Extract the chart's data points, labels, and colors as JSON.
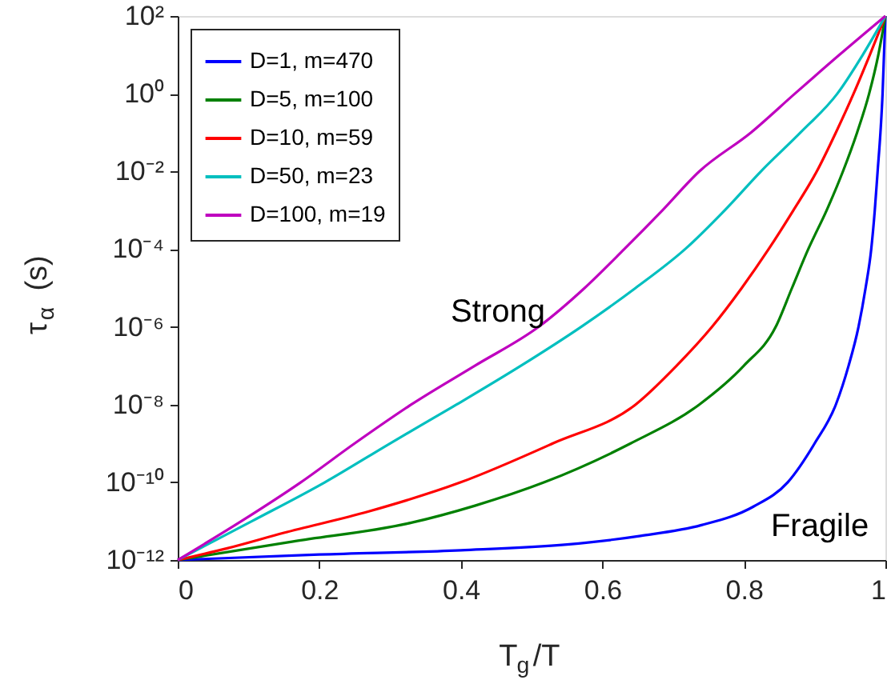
{
  "chart_data": {
    "type": "line",
    "xlabel": "T$_{g}$/T",
    "ylabel": "τ$_{α}$ (s)",
    "log": "y",
    "xlim": [
      0,
      1
    ],
    "xticks": [
      0,
      0.2,
      0.4,
      0.6,
      0.8,
      1
    ],
    "ylim": [
      1e-12,
      100
    ],
    "yticks": [
      {
        "value": 100,
        "label": "10²"
      },
      {
        "value": 1,
        "label": "10⁰"
      },
      {
        "value": 0.01,
        "label": "10⁻²"
      },
      {
        "value": 0.0001,
        "label": "10⁻⁴"
      },
      {
        "value": 1e-06,
        "label": "10⁻⁶"
      },
      {
        "value": 1e-08,
        "label": "10⁻⁸"
      },
      {
        "value": 1e-10,
        "label": "10⁻¹⁰"
      },
      {
        "value": 1e-12,
        "label": "10⁻¹²"
      }
    ],
    "grid": false,
    "legend": "top left",
    "marker": "none",
    "line_style": "solid",
    "annotations": [
      "Strong",
      "Fragile"
    ],
    "series": [
      {
        "name": "D=1, m=470",
        "color": "#0000ff",
        "x": [
          0,
          0.2,
          0.4,
          0.55,
          0.654,
          0.74,
          0.813,
          0.862,
          0.9,
          0.93,
          0.948,
          0.962,
          0.972,
          0.98,
          0.985,
          0.989,
          0.993,
          0.996,
          0.998,
          1
        ],
        "values": [
          1e-12,
          1.38e-12,
          1.78e-12,
          2.5e-12,
          4.17e-12,
          7.9e-12,
          2.34e-11,
          1e-10,
          1e-09,
          1e-08,
          1e-07,
          1e-06,
          1e-05,
          0.0001,
          0.001,
          0.01,
          0.1,
          1,
          10,
          100
        ]
      },
      {
        "name": "D=5, m=100",
        "color": "#008000",
        "x": [
          0,
          0.163,
          0.33,
          0.42,
          0.518,
          0.64,
          0.737,
          0.8,
          0.845,
          0.868,
          0.891,
          0.917,
          0.94,
          0.96,
          0.977,
          0.99,
          1
        ],
        "values": [
          1e-12,
          3e-12,
          9.1e-12,
          2.5e-11,
          1e-10,
          1e-09,
          1e-08,
          1e-07,
          1e-06,
          1e-05,
          0.0001,
          0.001,
          0.01,
          0.1,
          1,
          10,
          100
        ]
      },
      {
        "name": "D=10, m=59",
        "color": "#ff0000",
        "x": [
          0,
          0.07,
          0.15,
          0.27,
          0.4,
          0.53,
          0.647,
          0.705,
          0.755,
          0.797,
          0.835,
          0.87,
          0.903,
          0.93,
          0.955,
          0.978,
          1
        ],
        "values": [
          1e-12,
          2e-12,
          5e-12,
          1.78e-11,
          1e-10,
          1e-09,
          1e-08,
          1e-07,
          1e-06,
          1e-05,
          0.0001,
          0.001,
          0.01,
          0.1,
          1,
          10,
          100
        ]
      },
      {
        "name": "D=50, m=23",
        "color": "#00bfbf",
        "x": [
          0,
          0.105,
          0.208,
          0.3,
          0.394,
          0.485,
          0.57,
          0.647,
          0.717,
          0.773,
          0.824,
          0.88,
          0.932,
          0.968,
          1
        ],
        "values": [
          1e-12,
          1e-11,
          1e-10,
          1e-09,
          1e-08,
          1e-07,
          1e-06,
          1e-05,
          0.0001,
          0.001,
          0.01,
          0.1,
          1,
          10,
          100
        ]
      },
      {
        "name": "D=100, m=19",
        "color": "#bf00bf",
        "x": [
          0,
          0.09,
          0.174,
          0.25,
          0.33,
          0.42,
          0.51,
          0.575,
          0.631,
          0.685,
          0.737,
          0.81,
          0.872,
          0.935,
          1
        ],
        "values": [
          1e-12,
          1e-11,
          1e-10,
          1e-09,
          1e-08,
          1e-07,
          1e-06,
          1e-05,
          0.0001,
          0.001,
          0.01,
          0.1,
          1,
          10,
          100
        ]
      }
    ]
  }
}
